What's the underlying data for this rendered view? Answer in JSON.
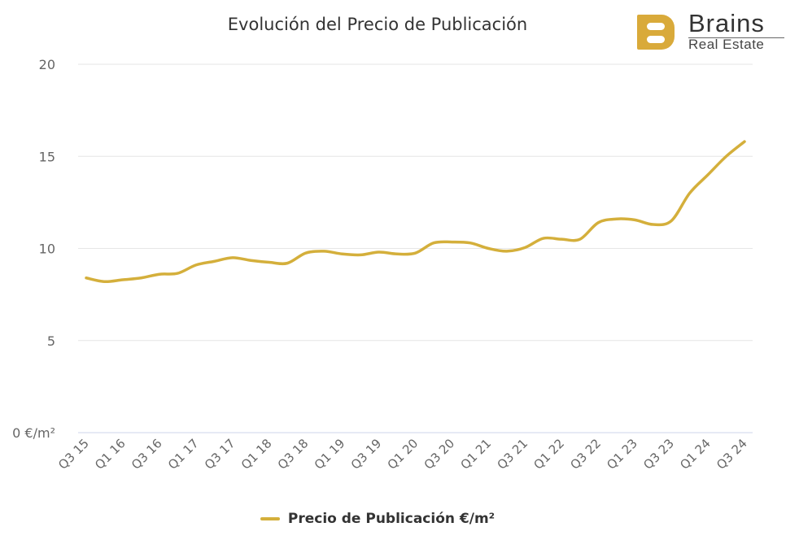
{
  "chart_data": {
    "type": "line",
    "title": "Evolución del Precio de Publicación",
    "x_tick_labels": [
      "Q3 15",
      "Q1 16",
      "Q3 16",
      "Q1 17",
      "Q3 17",
      "Q1 18",
      "Q3 18",
      "Q1 19",
      "Q3 19",
      "Q1 20",
      "Q3 20",
      "Q1 21",
      "Q3 21",
      "Q1 22",
      "Q3 22",
      "Q1 23",
      "Q3 23",
      "Q1 24",
      "Q3 24"
    ],
    "x_frequency": "quarterly",
    "y_tick_labels": [
      "0 €/m²",
      "5",
      "10",
      "15",
      "20"
    ],
    "y_ticks": [
      0,
      5,
      10,
      15,
      20
    ],
    "ylim": [
      0,
      20
    ],
    "grid": true,
    "series": [
      {
        "name": "Precio de Publicación €/m²",
        "color": "#d4af3b",
        "values": [
          8.4,
          8.2,
          8.3,
          8.4,
          8.6,
          8.65,
          9.1,
          9.3,
          9.5,
          9.35,
          9.25,
          9.2,
          9.75,
          9.85,
          9.7,
          9.65,
          9.8,
          9.7,
          9.75,
          10.3,
          10.35,
          10.3,
          10.0,
          9.85,
          10.05,
          10.55,
          10.5,
          10.5,
          11.4,
          11.6,
          11.55,
          11.3,
          11.5,
          13.0,
          14.0,
          15.0,
          15.8
        ]
      }
    ],
    "legend": "bottom-center"
  },
  "logo": {
    "name": "Brains",
    "subtitle": "Real Estate"
  }
}
